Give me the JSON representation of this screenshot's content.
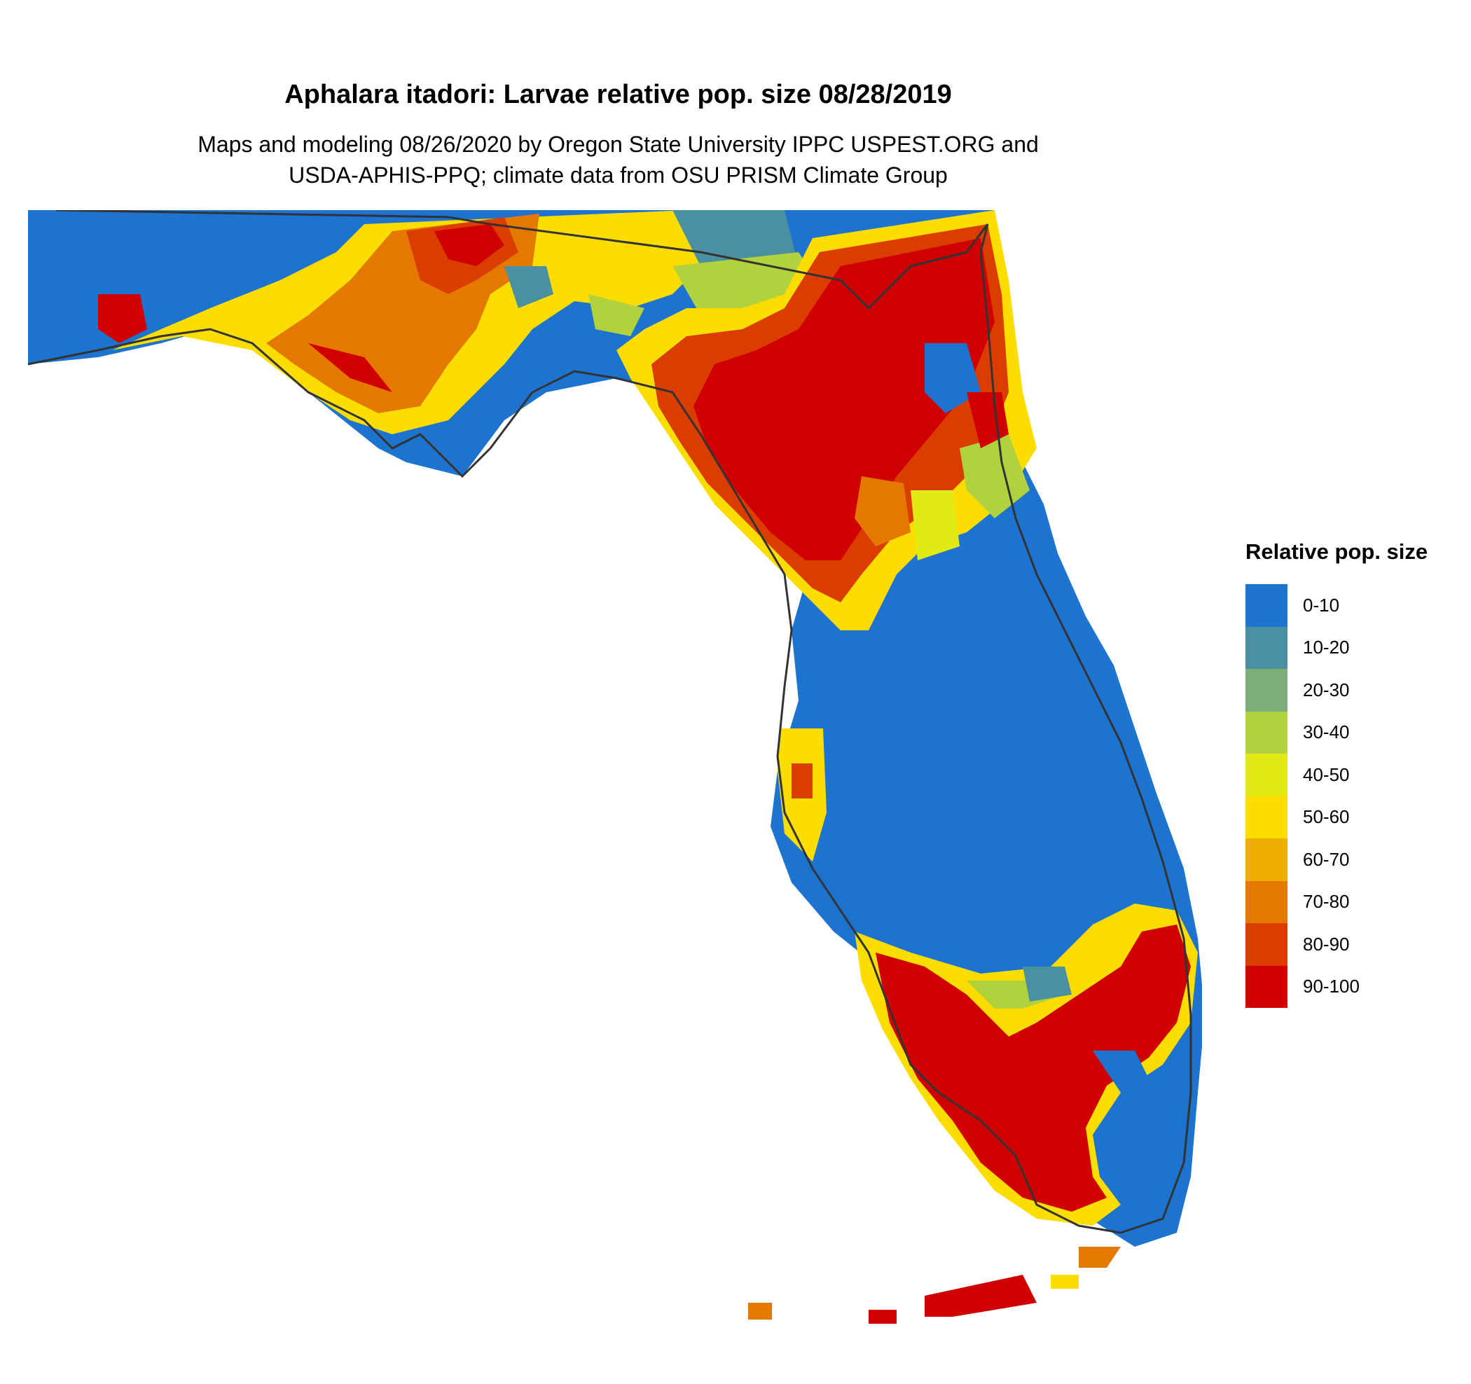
{
  "title": "Aphalara itadori: Larvae relative pop. size 08/28/2019",
  "subtitle_line1": "Maps and modeling 08/26/2020 by Oregon State University IPPC USPEST.ORG and",
  "subtitle_line2": "USDA-APHIS-PPQ; climate data from OSU PRISM Climate Group",
  "legend": {
    "title": "Relative pop. size",
    "items": [
      {
        "label": "0-10",
        "color": "#1c74d0"
      },
      {
        "label": "10-20",
        "color": "#4a90a0"
      },
      {
        "label": "20-30",
        "color": "#7dae78"
      },
      {
        "label": "30-40",
        "color": "#b2d23d"
      },
      {
        "label": "40-50",
        "color": "#e1ea12"
      },
      {
        "label": "50-60",
        "color": "#fbdd00"
      },
      {
        "label": "60-70",
        "color": "#eeae00"
      },
      {
        "label": "70-80",
        "color": "#e57900"
      },
      {
        "label": "80-90",
        "color": "#db3c00"
      },
      {
        "label": "90-100",
        "color": "#d10000"
      }
    ]
  },
  "map": {
    "region": "Florida",
    "colors": {
      "low": "#1c74d0",
      "mid_low": "#4a90a0",
      "mid": "#b2d23d",
      "yellow": "#fbdd00",
      "orange": "#e57900",
      "high": "#d10000",
      "outline": "#333333"
    }
  }
}
